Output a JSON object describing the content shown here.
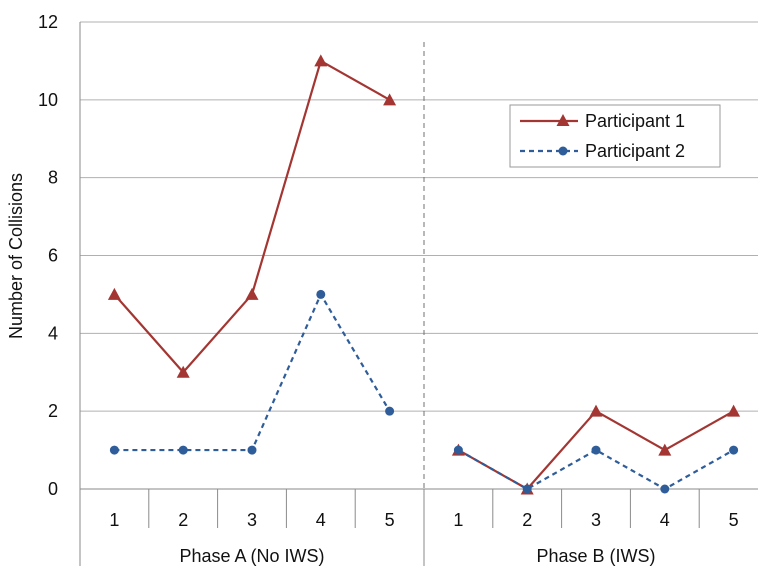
{
  "chart_data": {
    "type": "line",
    "title": "",
    "ylabel": "Number of Collisions",
    "xlabel": "",
    "ylim": [
      0,
      12
    ],
    "yticks": [
      0,
      2,
      4,
      6,
      8,
      10,
      12
    ],
    "grid": true,
    "legend_position": "top-right",
    "groups": [
      {
        "label": "Phase A (No IWS)",
        "categories": [
          "1",
          "2",
          "3",
          "4",
          "5"
        ]
      },
      {
        "label": "Phase B (IWS)",
        "categories": [
          "1",
          "2",
          "3",
          "4",
          "5"
        ]
      }
    ],
    "series": [
      {
        "name": "Participant 1",
        "color": "#A33632",
        "line_style": "solid",
        "marker": "triangle",
        "segments": [
          [
            5,
            3,
            5,
            11,
            10
          ],
          [
            1,
            0,
            2,
            1,
            2
          ]
        ]
      },
      {
        "name": "Participant 2",
        "color": "#2F5D9A",
        "line_style": "dashed",
        "marker": "circle",
        "segments": [
          [
            1,
            1,
            1,
            5,
            2
          ],
          [
            1,
            0,
            1,
            0,
            1
          ]
        ]
      }
    ]
  }
}
